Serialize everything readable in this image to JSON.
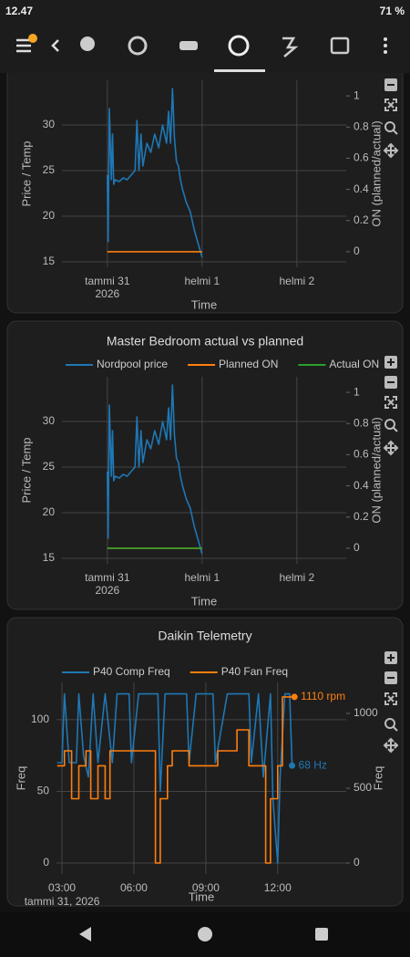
{
  "status_bar": {
    "time": "12.47",
    "battery": "71 %"
  },
  "chart_data": [
    {
      "type": "line",
      "x_label": "Time",
      "y_label": "Price / Temp",
      "y2_label": "ON (planned/actual)",
      "xlim": [
        -11.5,
        60.5
      ],
      "xticks": [
        {
          "value": 0,
          "label": "tammi 31",
          "sublabel": "2026"
        },
        {
          "value": 24,
          "label": "helmi 1"
        },
        {
          "value": 48,
          "label": "helmi 2"
        }
      ],
      "ylim": [
        14.4,
        34.9
      ],
      "yticks": [
        15,
        20,
        25,
        30
      ],
      "y2lim": [
        -0.1,
        1.1
      ],
      "y2ticks": [
        0,
        0.2,
        0.4,
        0.6,
        0.8,
        1
      ],
      "grid": true,
      "series": [
        {
          "color": "#1f77b4",
          "axis": "y",
          "x": [
            0,
            0.2,
            0.5,
            1,
            1.3,
            1.6,
            2,
            3,
            4,
            5,
            6,
            7,
            7.5,
            8,
            8.5,
            9,
            10,
            11,
            12,
            13,
            14,
            15,
            15.5,
            16,
            16.5,
            17,
            17.5,
            18,
            18.5,
            19,
            20,
            21,
            22,
            23,
            24
          ],
          "values": [
            24.5,
            17.2,
            31.8,
            24,
            29,
            23.5,
            24,
            23.8,
            24.2,
            24,
            24.5,
            25,
            30.5,
            25,
            29,
            25.5,
            28,
            27,
            29,
            27.5,
            30,
            28,
            31.5,
            28,
            34,
            28.5,
            26,
            25.5,
            24,
            23,
            21.5,
            20.5,
            18.5,
            17,
            15.5
          ]
        },
        {
          "color": "#ff7f0e",
          "axis": "y2",
          "x": [
            0,
            24
          ],
          "values": [
            0,
            0
          ]
        }
      ]
    },
    {
      "type": "line",
      "title": "Master Bedroom actual vs planned",
      "x_label": "Time",
      "y_label": "Price / Temp",
      "y2_label": "ON (planned/actual)",
      "xlim": [
        -11.5,
        60.5
      ],
      "xticks": [
        {
          "value": 0,
          "label": "tammi 31",
          "sublabel": "2026"
        },
        {
          "value": 24,
          "label": "helmi 1"
        },
        {
          "value": 48,
          "label": "helmi 2"
        }
      ],
      "ylim": [
        14.4,
        34.9
      ],
      "yticks": [
        15,
        20,
        25,
        30
      ],
      "y2lim": [
        -0.1,
        1.1
      ],
      "y2ticks": [
        0,
        0.2,
        0.4,
        0.6,
        0.8,
        1
      ],
      "grid": true,
      "series": [
        {
          "name": "Nordpool price",
          "color": "#1f77b4",
          "axis": "y",
          "x": [
            0,
            0.2,
            0.5,
            1,
            1.3,
            1.6,
            2,
            3,
            4,
            5,
            6,
            7,
            7.5,
            8,
            8.5,
            9,
            10,
            11,
            12,
            13,
            14,
            15,
            15.5,
            16,
            16.5,
            17,
            17.5,
            18,
            18.5,
            19,
            20,
            21,
            22,
            23,
            24
          ],
          "values": [
            24.5,
            17.2,
            31.8,
            24,
            29,
            23.5,
            24,
            23.8,
            24.2,
            24,
            24.5,
            25,
            30.5,
            25,
            29,
            25.5,
            28,
            27,
            29,
            27.5,
            30,
            28,
            31.5,
            28,
            34,
            28.5,
            26,
            25.5,
            24,
            23,
            21.5,
            20.5,
            18.5,
            17,
            15.5
          ]
        },
        {
          "name": "Planned ON",
          "color": "#ff7f0e",
          "axis": "y2",
          "x": [
            0,
            24
          ],
          "values": [
            0,
            0
          ]
        },
        {
          "name": "Actual ON",
          "color": "#2ca02c",
          "axis": "y2",
          "x": [
            0,
            24
          ],
          "values": [
            0,
            0
          ]
        }
      ]
    },
    {
      "type": "line",
      "title": "Daikin Telemetry",
      "x_label": "Time",
      "y_label": "Freq",
      "y2_label": "Freq",
      "xlim": [
        2.77,
        14.86
      ],
      "xticks": [
        {
          "value": 3,
          "label": "03:00",
          "sublabel": "tammi 31, 2026"
        },
        {
          "value": 6,
          "label": "06:00"
        },
        {
          "value": 9,
          "label": "09:00"
        },
        {
          "value": 12,
          "label": "12:00"
        }
      ],
      "ylim": [
        -7.6,
        126
      ],
      "yticks": [
        0,
        50,
        100
      ],
      "y2lim": [
        -73,
        1207
      ],
      "y2ticks": [
        0,
        500,
        1000
      ],
      "grid": true,
      "series": [
        {
          "name": "P40 Comp Freq",
          "color": "#1f77b4",
          "axis": "y",
          "x": [
            2.8,
            3.0,
            3.1,
            3.3,
            3.6,
            3.7,
            3.9,
            4.1,
            4.3,
            4.5,
            4.8,
            5.1,
            5.3,
            5.8,
            5.9,
            6.2,
            7.0,
            7.1,
            7.3,
            8.2,
            8.3,
            8.6,
            9.3,
            9.4,
            9.9,
            10.8,
            10.9,
            11.2,
            11.4,
            11.7,
            11.8,
            12.0,
            12.1,
            12.3,
            12.5,
            12.6
          ],
          "values": [
            70,
            70,
            118,
            70,
            70,
            118,
            75,
            60,
            118,
            70,
            118,
            70,
            118,
            118,
            70,
            118,
            118,
            50,
            118,
            118,
            70,
            118,
            118,
            70,
            118,
            118,
            70,
            118,
            60,
            118,
            45,
            0,
            60,
            118,
            118,
            68
          ]
        },
        {
          "name": "P40 Fan Freq",
          "color": "#ff7f0e",
          "axis": "y2",
          "x": [
            2.8,
            3.1,
            3.1,
            3.4,
            3.4,
            3.7,
            3.7,
            4.0,
            4.0,
            4.2,
            4.2,
            4.5,
            4.5,
            4.8,
            4.8,
            5.0,
            5.0,
            6.9,
            6.9,
            7.1,
            7.1,
            7.4,
            7.4,
            7.6,
            7.6,
            8.3,
            8.3,
            9.5,
            9.5,
            10.3,
            10.3,
            10.8,
            10.8,
            11.5,
            11.5,
            11.7,
            11.7,
            12.0,
            12.0,
            12.2,
            12.2,
            12.7
          ],
          "values": [
            650,
            650,
            750,
            750,
            430,
            430,
            650,
            650,
            750,
            750,
            430,
            430,
            650,
            650,
            430,
            430,
            750,
            750,
            0,
            0,
            430,
            430,
            650,
            650,
            750,
            750,
            650,
            650,
            750,
            750,
            890,
            890,
            650,
            650,
            0,
            0,
            430,
            430,
            650,
            650,
            1110,
            1110
          ]
        }
      ],
      "annotations": [
        {
          "text": "1110 rpm",
          "x": 12.7,
          "y": 1110,
          "axis": "y2",
          "color": "#ff7f0e"
        },
        {
          "text": "68 Hz",
          "x": 12.6,
          "y": 68,
          "axis": "y",
          "color": "#1f77b4"
        }
      ]
    }
  ]
}
